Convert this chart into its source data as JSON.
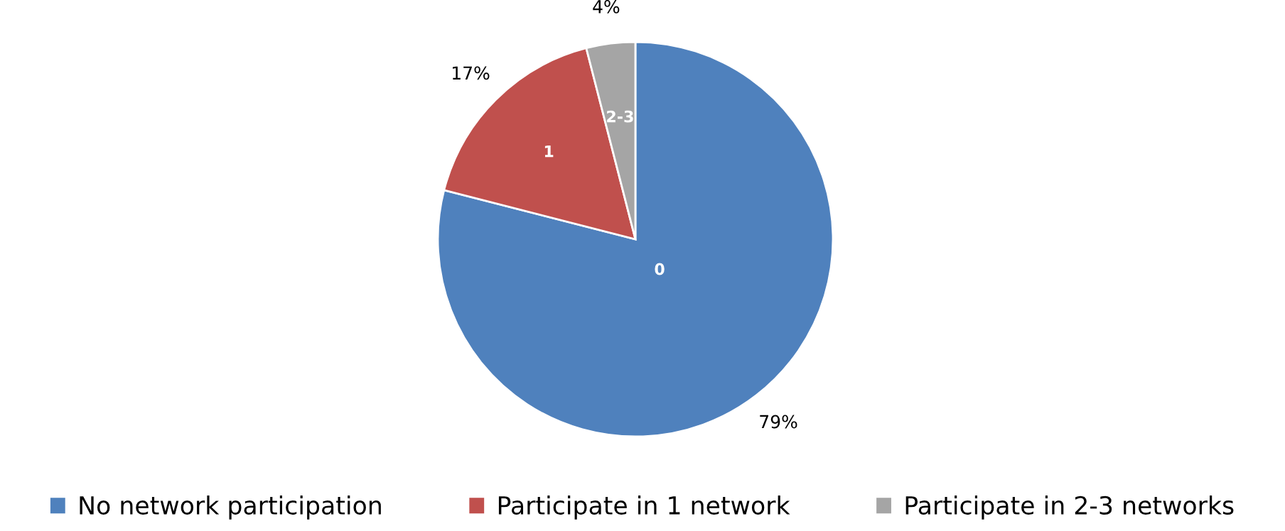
{
  "chart_data": {
    "type": "pie",
    "categories": [
      "No network participation",
      "Participate in 1 network",
      "Participate in 2-3 networks"
    ],
    "values": [
      79,
      17,
      4
    ],
    "colors": [
      "#4f81bd",
      "#c0504d",
      "#a5a5a5"
    ],
    "value_labels": [
      "79%",
      "17%",
      "4%"
    ],
    "annotations": [
      {
        "text": "0",
        "x": "No network participation"
      },
      {
        "text": "1",
        "x": "Participate in 1 network"
      },
      {
        "text": "2-3",
        "x": "Participate in 2-3 networks"
      }
    ],
    "legend": "bottom"
  }
}
